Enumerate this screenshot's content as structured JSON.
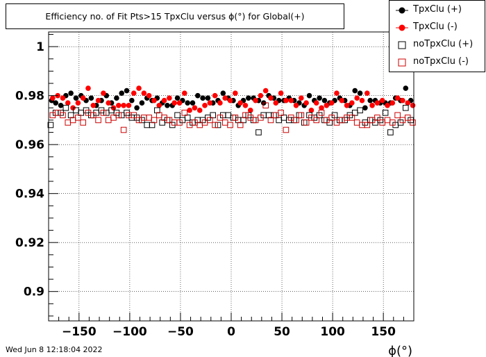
{
  "title": "Efficiency no. of Fit Pts>15 TpxClu versus ϕ(°) for Global(+)",
  "footer": {
    "date": "Wed Jun  8 12:18:04 2022"
  },
  "chart_data": {
    "type": "scatter",
    "title": "Efficiency no. of Fit Pts>15 TpxClu versus ϕ(°) for Global(+)",
    "xlabel": "ϕ(°)",
    "ylabel": "",
    "xlim": [
      -180,
      180
    ],
    "ylim": [
      0.888,
      1.006
    ],
    "grid": true,
    "legend_position": "top-right",
    "x_ticks": [
      -150,
      -100,
      -50,
      0,
      50,
      100,
      150
    ],
    "x_tick_labels": [
      "−150",
      "−100",
      "−50",
      "0",
      "50",
      "100",
      "150"
    ],
    "y_ticks": [
      0.9,
      0.92,
      0.94,
      0.96,
      0.98,
      1
    ],
    "y_tick_labels": [
      "0.9",
      "0.92",
      "0.94",
      "0.96",
      "0.98",
      "1"
    ],
    "series": [
      {
        "name": "TpxClu (+)",
        "color": "#000000",
        "marker": "filled-circle",
        "x": [
          -177,
          -173,
          -168,
          -163,
          -158,
          -153,
          -148,
          -143,
          -138,
          -133,
          -128,
          -123,
          -118,
          -113,
          -108,
          -103,
          -98,
          -93,
          -88,
          -83,
          -78,
          -73,
          -68,
          -63,
          -58,
          -53,
          -48,
          -43,
          -38,
          -33,
          -28,
          -23,
          -18,
          -13,
          -8,
          -3,
          2,
          7,
          12,
          17,
          22,
          27,
          32,
          37,
          42,
          47,
          52,
          57,
          62,
          67,
          72,
          77,
          82,
          87,
          92,
          97,
          102,
          107,
          112,
          117,
          122,
          127,
          132,
          137,
          142,
          147,
          152,
          157,
          162,
          167,
          172,
          177
        ],
        "y": [
          0.978,
          0.977,
          0.976,
          0.98,
          0.981,
          0.979,
          0.98,
          0.978,
          0.979,
          0.976,
          0.978,
          0.98,
          0.977,
          0.979,
          0.981,
          0.982,
          0.978,
          0.975,
          0.977,
          0.979,
          0.978,
          0.979,
          0.977,
          0.976,
          0.976,
          0.979,
          0.978,
          0.977,
          0.977,
          0.98,
          0.979,
          0.979,
          0.977,
          0.978,
          0.981,
          0.979,
          0.978,
          0.976,
          0.978,
          0.979,
          0.979,
          0.978,
          0.977,
          0.98,
          0.979,
          0.978,
          0.978,
          0.979,
          0.978,
          0.977,
          0.976,
          0.98,
          0.978,
          0.979,
          0.978,
          0.977,
          0.978,
          0.979,
          0.978,
          0.976,
          0.982,
          0.981,
          0.975,
          0.978,
          0.978,
          0.977,
          0.977,
          0.977,
          0.979,
          0.978,
          0.983,
          0.978
        ]
      },
      {
        "name": "TpxClu (-)",
        "color": "#ff0000",
        "marker": "filled-circle",
        "x": [
          -176,
          -171,
          -166,
          -161,
          -156,
          -151,
          -146,
          -141,
          -136,
          -131,
          -126,
          -121,
          -116,
          -111,
          -106,
          -101,
          -96,
          -91,
          -86,
          -81,
          -76,
          -71,
          -66,
          -61,
          -56,
          -51,
          -46,
          -41,
          -36,
          -31,
          -26,
          -21,
          -16,
          -11,
          -6,
          -1,
          4,
          9,
          14,
          19,
          24,
          29,
          34,
          39,
          44,
          49,
          54,
          59,
          64,
          69,
          74,
          79,
          84,
          89,
          94,
          99,
          104,
          109,
          114,
          119,
          124,
          129,
          134,
          139,
          144,
          149,
          154,
          159,
          164,
          169,
          174,
          179
        ],
        "y": [
          0.979,
          0.98,
          0.979,
          0.977,
          0.975,
          0.977,
          0.979,
          0.983,
          0.976,
          0.978,
          0.981,
          0.977,
          0.975,
          0.976,
          0.976,
          0.976,
          0.981,
          0.983,
          0.981,
          0.98,
          0.978,
          0.976,
          0.978,
          0.979,
          0.977,
          0.977,
          0.981,
          0.974,
          0.975,
          0.974,
          0.976,
          0.977,
          0.98,
          0.977,
          0.979,
          0.978,
          0.981,
          0.977,
          0.976,
          0.974,
          0.978,
          0.98,
          0.982,
          0.979,
          0.977,
          0.981,
          0.978,
          0.978,
          0.976,
          0.979,
          0.977,
          0.974,
          0.977,
          0.975,
          0.976,
          0.977,
          0.981,
          0.978,
          0.976,
          0.977,
          0.979,
          0.978,
          0.981,
          0.976,
          0.977,
          0.978,
          0.976,
          0.977,
          0.979,
          0.978,
          0.977,
          0.976
        ]
      },
      {
        "name": "noTpxClu (+)",
        "color": "#000000",
        "marker": "open-square",
        "x": [
          -178,
          -173,
          -168,
          -163,
          -158,
          -153,
          -148,
          -143,
          -138,
          -133,
          -128,
          -123,
          -118,
          -113,
          -108,
          -103,
          -98,
          -93,
          -88,
          -83,
          -78,
          -73,
          -68,
          -63,
          -58,
          -53,
          -48,
          -43,
          -38,
          -33,
          -28,
          -23,
          -18,
          -13,
          -8,
          -3,
          2,
          7,
          12,
          17,
          22,
          27,
          32,
          37,
          42,
          47,
          52,
          57,
          62,
          67,
          72,
          77,
          82,
          87,
          92,
          97,
          102,
          107,
          112,
          117,
          122,
          127,
          132,
          137,
          142,
          147,
          152,
          157,
          162,
          167,
          172,
          177
        ],
        "y": [
          0.968,
          0.973,
          0.973,
          0.975,
          0.972,
          0.974,
          0.973,
          0.974,
          0.972,
          0.973,
          0.974,
          0.973,
          0.974,
          0.973,
          0.972,
          0.973,
          0.971,
          0.971,
          0.97,
          0.968,
          0.968,
          0.974,
          0.969,
          0.97,
          0.968,
          0.972,
          0.97,
          0.971,
          0.969,
          0.97,
          0.97,
          0.971,
          0.972,
          0.968,
          0.972,
          0.972,
          0.971,
          0.97,
          0.97,
          0.972,
          0.97,
          0.965,
          0.972,
          0.972,
          0.972,
          0.97,
          0.971,
          0.97,
          0.97,
          0.972,
          0.969,
          0.972,
          0.971,
          0.972,
          0.97,
          0.969,
          0.972,
          0.97,
          0.97,
          0.972,
          0.973,
          0.974,
          0.969,
          0.97,
          0.969,
          0.97,
          0.973,
          0.965,
          0.968,
          0.969,
          0.975,
          0.97
        ]
      },
      {
        "name": "noTpxClu (-)",
        "color": "#cc0000",
        "marker": "open-square",
        "x": [
          -176,
          -171,
          -166,
          -161,
          -156,
          -151,
          -146,
          -141,
          -136,
          -131,
          -126,
          -121,
          -116,
          -111,
          -106,
          -101,
          -96,
          -91,
          -86,
          -81,
          -76,
          -71,
          -66,
          -61,
          -56,
          -51,
          -46,
          -41,
          -36,
          -31,
          -26,
          -21,
          -16,
          -11,
          -6,
          -1,
          4,
          9,
          14,
          19,
          24,
          29,
          34,
          39,
          44,
          49,
          54,
          59,
          64,
          69,
          74,
          79,
          84,
          89,
          94,
          99,
          104,
          109,
          114,
          119,
          124,
          129,
          134,
          139,
          144,
          149,
          154,
          159,
          164,
          169,
          174,
          179
        ],
        "y": [
          0.972,
          0.973,
          0.972,
          0.969,
          0.97,
          0.971,
          0.969,
          0.973,
          0.972,
          0.97,
          0.973,
          0.97,
          0.971,
          0.972,
          0.966,
          0.972,
          0.972,
          0.97,
          0.971,
          0.971,
          0.97,
          0.972,
          0.971,
          0.97,
          0.969,
          0.969,
          0.973,
          0.968,
          0.969,
          0.968,
          0.969,
          0.97,
          0.968,
          0.971,
          0.969,
          0.968,
          0.971,
          0.968,
          0.972,
          0.971,
          0.97,
          0.971,
          0.976,
          0.97,
          0.972,
          0.973,
          0.966,
          0.971,
          0.97,
          0.972,
          0.969,
          0.971,
          0.97,
          0.973,
          0.97,
          0.971,
          0.969,
          0.97,
          0.971,
          0.971,
          0.969,
          0.968,
          0.968,
          0.97,
          0.971,
          0.969,
          0.97,
          0.969,
          0.972,
          0.97,
          0.971,
          0.969
        ]
      }
    ]
  }
}
